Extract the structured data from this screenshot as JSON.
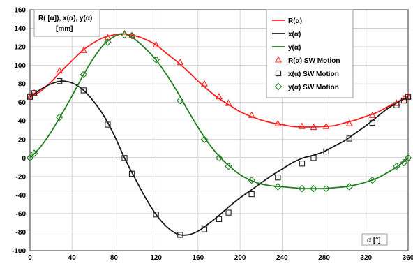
{
  "chart_data": {
    "type": "line",
    "ylabel_lines": [
      "R( [α]), x(α), y(α)",
      "[mm]"
    ],
    "xlabel": "α [°]",
    "xlim": [
      0,
      360
    ],
    "ylim": [
      -100,
      160
    ],
    "xticks": [
      0,
      40,
      80,
      120,
      160,
      200,
      240,
      280,
      320,
      360
    ],
    "yticks": [
      -100,
      -80,
      -60,
      -40,
      -20,
      0,
      20,
      40,
      60,
      80,
      100,
      120,
      140,
      160
    ],
    "grid": true,
    "legend_position": "top-right",
    "series": [
      {
        "name": "R(α)",
        "kind": "line",
        "color": "#ff2020",
        "x": [
          0,
          10,
          20,
          30,
          40,
          50,
          60,
          70,
          80,
          90,
          100,
          110,
          120,
          130,
          140,
          150,
          160,
          170,
          180,
          190,
          200,
          210,
          220,
          230,
          240,
          250,
          260,
          270,
          280,
          290,
          300,
          310,
          320,
          330,
          340,
          350,
          360
        ],
        "y": [
          66,
          72,
          82,
          94,
          105,
          116,
          124,
          130,
          133,
          134,
          132,
          128,
          122,
          113,
          104,
          94,
          83,
          73,
          64,
          57,
          50,
          45,
          41,
          38,
          36,
          34,
          33.5,
          33.5,
          34,
          35,
          38,
          41,
          45,
          49,
          55,
          61,
          66
        ]
      },
      {
        "name": "x(α)",
        "kind": "line",
        "color": "#1a1a1a",
        "x": [
          0,
          10,
          20,
          30,
          40,
          50,
          60,
          70,
          80,
          90,
          100,
          110,
          120,
          130,
          140,
          150,
          160,
          170,
          180,
          190,
          200,
          210,
          220,
          230,
          240,
          250,
          260,
          270,
          280,
          290,
          300,
          310,
          320,
          330,
          340,
          350,
          360
        ],
        "y": [
          66,
          74,
          80,
          83,
          81,
          74,
          62,
          46,
          25,
          0,
          -22,
          -43,
          -61,
          -74,
          -82,
          -83,
          -79,
          -71,
          -62,
          -52,
          -43,
          -35,
          -27,
          -19,
          -12,
          -5,
          0,
          3,
          7,
          13,
          19,
          27,
          35,
          44,
          53,
          60,
          66
        ]
      },
      {
        "name": "y(α)",
        "kind": "line",
        "color": "#1f7f1f",
        "x": [
          0,
          10,
          20,
          30,
          40,
          50,
          60,
          70,
          80,
          90,
          100,
          110,
          120,
          130,
          140,
          150,
          160,
          170,
          180,
          190,
          200,
          210,
          220,
          230,
          240,
          250,
          260,
          270,
          280,
          290,
          300,
          310,
          320,
          330,
          340,
          350,
          360
        ],
        "y": [
          0,
          12,
          28,
          47,
          67,
          88,
          107,
          122,
          131,
          134,
          128,
          118,
          106,
          90,
          72,
          52,
          33,
          16,
          2,
          -9,
          -18,
          -24,
          -28,
          -30,
          -31,
          -32,
          -33,
          -33,
          -33,
          -32,
          -31,
          -29,
          -26,
          -22,
          -16,
          -9,
          0
        ]
      },
      {
        "name": "R(α) SW Motion",
        "kind": "marker",
        "marker": "triangle",
        "color": "#ff2020",
        "x": [
          0,
          4,
          28,
          51,
          74,
          90,
          97,
          120,
          143,
          166,
          180,
          189,
          211,
          236,
          259,
          270,
          282,
          304,
          326,
          349,
          356,
          360
        ],
        "y": [
          66,
          70,
          94,
          116,
          130,
          134,
          132,
          122,
          103,
          80,
          66,
          59,
          46,
          37,
          34,
          33,
          34,
          37,
          46,
          59,
          64,
          66
        ]
      },
      {
        "name": "x(α) SW Motion",
        "kind": "marker",
        "marker": "square",
        "color": "#222222",
        "x": [
          0,
          4,
          28,
          51,
          74,
          90,
          97,
          120,
          143,
          166,
          180,
          189,
          211,
          236,
          259,
          270,
          282,
          304,
          326,
          349,
          356,
          360
        ],
        "y": [
          66,
          70,
          83,
          73,
          36,
          0,
          -17,
          -61,
          -83,
          -77,
          -66,
          -59,
          -39,
          -21,
          -6,
          0,
          7,
          21,
          38,
          57,
          62,
          66
        ]
      },
      {
        "name": "y(α) SW Motion",
        "kind": "marker",
        "marker": "diamond",
        "color": "#1f7f1f",
        "x": [
          0,
          4,
          28,
          51,
          74,
          90,
          97,
          120,
          143,
          166,
          180,
          189,
          211,
          236,
          259,
          270,
          282,
          304,
          326,
          349,
          356,
          360
        ],
        "y": [
          0,
          5,
          44,
          90,
          125,
          133,
          132,
          106,
          62,
          20,
          0,
          -9,
          -24,
          -31,
          -33,
          -33,
          -33,
          -31,
          -24,
          -9,
          -5,
          0
        ]
      }
    ]
  }
}
